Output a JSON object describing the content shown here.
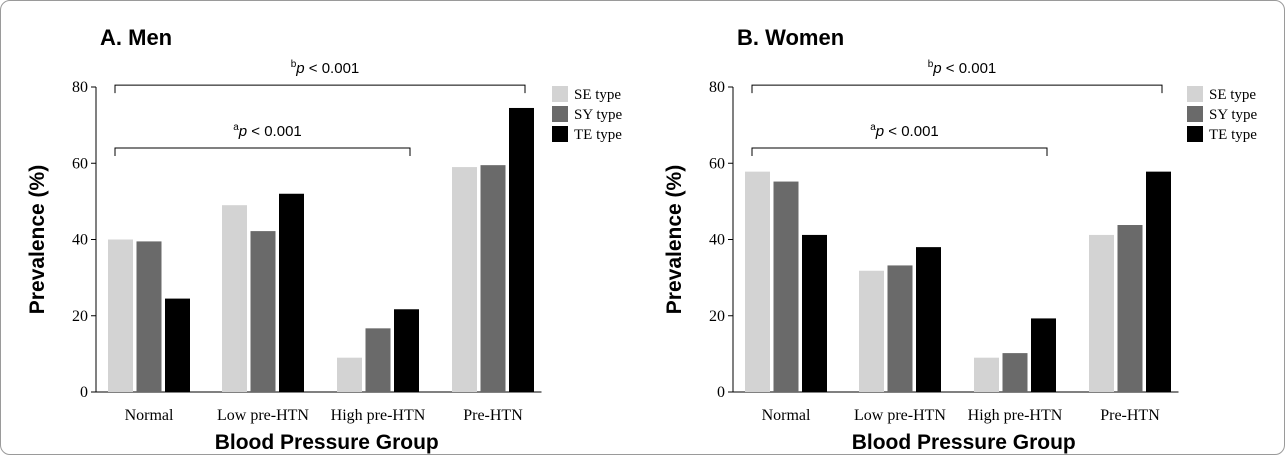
{
  "chart_data": [
    {
      "type": "bar",
      "title": "A. Men",
      "xlabel": "Blood Pressure Group",
      "ylabel": "Prevalence (%)",
      "ylim": [
        0,
        80
      ],
      "yticks": [
        0,
        20,
        40,
        60,
        80
      ],
      "categories": [
        "Normal",
        "Low pre-HTN",
        "High pre-HTN",
        "Pre-HTN"
      ],
      "series": [
        {
          "name": "SE type",
          "color": "#d3d3d3",
          "values": [
            40,
            49,
            9,
            59
          ]
        },
        {
          "name": "SY type",
          "color": "#6a6a6a",
          "values": [
            39.5,
            42.2,
            16.7,
            59.5
          ]
        },
        {
          "name": "TE type",
          "color": "#000000",
          "values": [
            24.5,
            52,
            21.7,
            74.5
          ]
        }
      ],
      "legend": "top-right",
      "grid": false,
      "annotations": [
        {
          "sup": "b",
          "p": "p",
          "text": " < 0.001",
          "from_category": 0,
          "to_category": 3,
          "y": 80.5
        },
        {
          "sup": "a",
          "p": "p",
          "text": " < 0.001",
          "from_category": 0,
          "to_category": 2,
          "y": 64
        }
      ]
    },
    {
      "type": "bar",
      "title": "B. Women",
      "xlabel": "Blood Pressure Group",
      "ylabel": "Prevalence (%)",
      "ylim": [
        0,
        80
      ],
      "yticks": [
        0,
        20,
        40,
        60,
        80
      ],
      "categories": [
        "Normal",
        "Low pre-HTN",
        "High pre-HTN",
        "Pre-HTN"
      ],
      "series": [
        {
          "name": "SE type",
          "color": "#d3d3d3",
          "values": [
            57.8,
            31.8,
            9,
            41.2
          ]
        },
        {
          "name": "SY type",
          "color": "#6a6a6a",
          "values": [
            55.2,
            33.2,
            10.2,
            43.8
          ]
        },
        {
          "name": "TE type",
          "color": "#000000",
          "values": [
            41.2,
            38,
            19.3,
            57.8
          ]
        }
      ],
      "legend": "top-right",
      "grid": false,
      "annotations": [
        {
          "sup": "b",
          "p": "p",
          "text": " < 0.001",
          "from_category": 0,
          "to_category": 3,
          "y": 80.5
        },
        {
          "sup": "a",
          "p": "p",
          "text": " < 0.001",
          "from_category": 0,
          "to_category": 2,
          "y": 64
        }
      ]
    }
  ]
}
